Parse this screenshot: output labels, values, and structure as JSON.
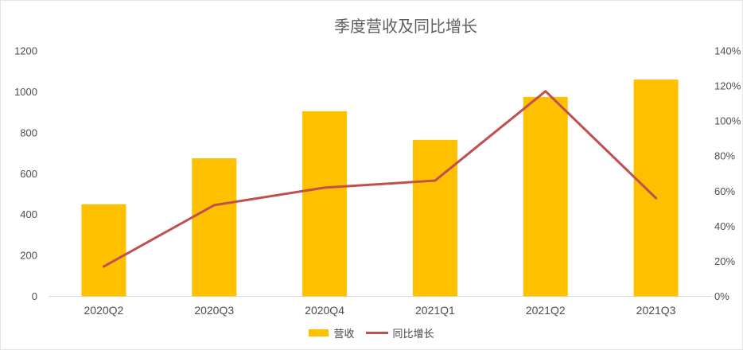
{
  "title": "季度营收及同比增长",
  "chart_data": {
    "type": "bar+line-combo",
    "title": "季度营收及同比增长",
    "categories": [
      "2020Q2",
      "2020Q3",
      "2020Q4",
      "2021Q1",
      "2021Q2",
      "2021Q3"
    ],
    "series": [
      {
        "name": "营收",
        "type": "bar",
        "axis": "left",
        "color": "#FFC000",
        "values": [
          450,
          675,
          905,
          765,
          975,
          1060
        ]
      },
      {
        "name": "同比增长",
        "type": "line",
        "axis": "right",
        "color": "#C0504D",
        "values": [
          17,
          52,
          62,
          66,
          117,
          56
        ],
        "unit": "%"
      }
    ],
    "left_axis": {
      "min": 0,
      "max": 1200,
      "step": 200,
      "tick_labels": [
        "0",
        "200",
        "400",
        "600",
        "800",
        "1000",
        "1200"
      ]
    },
    "right_axis": {
      "min": 0,
      "max": 140,
      "step": 20,
      "suffix": "%",
      "tick_labels": [
        "0%",
        "20%",
        "40%",
        "60%",
        "80%",
        "100%",
        "120%",
        "140%"
      ]
    },
    "grid": false,
    "legend_position": "bottom"
  },
  "colors": {
    "axis_line": "#d9d9d9",
    "tick_text": "#4d4d4d",
    "title_text": "#5f5f5f"
  }
}
